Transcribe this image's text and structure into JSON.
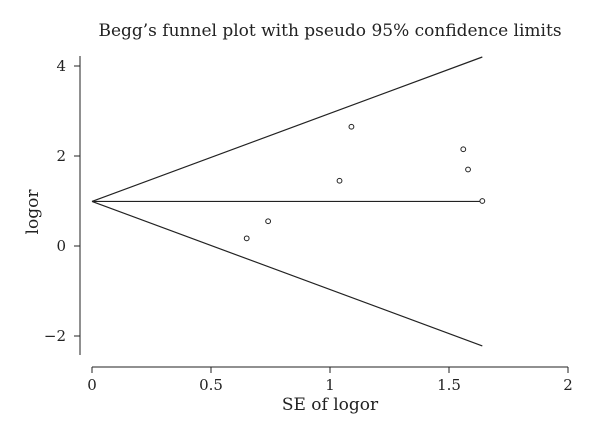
{
  "chart_data": {
    "type": "scatter",
    "title": "Begg’s funnel plot with pseudo 95% confidence limits",
    "xlabel": "SE of logor",
    "ylabel": "logor",
    "xlim": [
      0,
      2
    ],
    "ylim": [
      -2.4,
      4.4
    ],
    "x_ticks": [
      0,
      0.5,
      1,
      1.5,
      2
    ],
    "x_tick_labels": [
      "0",
      "0.5",
      "1",
      "1.5",
      "2"
    ],
    "y_ticks": [
      -2,
      0,
      2,
      4
    ],
    "y_tick_labels": [
      "−2",
      "0",
      "2",
      "4"
    ],
    "grid": false,
    "pooled_estimate": 0.99,
    "funnel_lines": {
      "center": [
        [
          0,
          0.99
        ],
        [
          1.64,
          0.99
        ]
      ],
      "upper": [
        [
          0,
          0.99
        ],
        [
          1.64,
          4.2
        ]
      ],
      "lower": [
        [
          0,
          0.99
        ],
        [
          1.64,
          -2.22
        ]
      ]
    },
    "points": [
      {
        "x": 0.65,
        "y": 0.17
      },
      {
        "x": 0.74,
        "y": 0.55
      },
      {
        "x": 1.04,
        "y": 1.45
      },
      {
        "x": 1.09,
        "y": 2.65
      },
      {
        "x": 1.56,
        "y": 2.15
      },
      {
        "x": 1.58,
        "y": 1.7
      },
      {
        "x": 1.64,
        "y": 1.0
      }
    ]
  }
}
